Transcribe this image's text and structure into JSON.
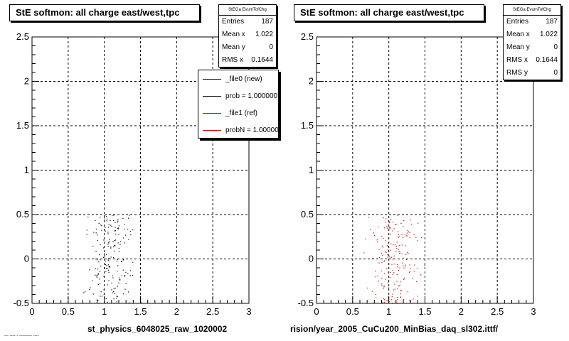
{
  "panels": [
    {
      "title": "StE softmon: all charge east/west,tpc",
      "stats": {
        "name": "StEGa EvumTofChg",
        "rows": [
          {
            "label": "Entries",
            "value": "187"
          },
          {
            "label": "Mean x",
            "value": "1.022"
          },
          {
            "label": "Mean y",
            "value": "0"
          },
          {
            "label": "RMS x",
            "value": "0.1644"
          }
        ]
      },
      "legend": [
        {
          "label": "_file0 (new)",
          "color": "#000000"
        },
        {
          "label": "prob = 1.000000",
          "color": "#000000"
        },
        {
          "label": "_file1 (ref)",
          "color": "#cc0000"
        },
        {
          "label": "probN = 1.000000",
          "color": "#cc0000"
        }
      ],
      "xlabel": "st_physics_6048025_raw_1020002"
    },
    {
      "title": "StE softmon: all charge east/west,tpc",
      "stats": {
        "name": "StEGa EvumTofChg",
        "rows": [
          {
            "label": "Entries",
            "value": "187"
          },
          {
            "label": "Mean x",
            "value": "1.022"
          },
          {
            "label": "Mean y",
            "value": "0"
          },
          {
            "label": "RMS x",
            "value": "0.1644"
          },
          {
            "label": "RMS y",
            "value": "0"
          }
        ]
      },
      "xlabel": "rision/year_2005_CuCu200_MinBias_daq_sl302.ittf/"
    }
  ],
  "footer": "--- ---- - --------- ----",
  "chart_data": [
    {
      "type": "scatter",
      "title": "StE softmon: all charge east/west,tpc",
      "xlabel": "st_physics_6048025_raw_1020002",
      "xlim": [
        0,
        3
      ],
      "ylim": [
        -0.5,
        2.5
      ],
      "xticks": [
        "0",
        "0.5",
        "1",
        "1.5",
        "2",
        "2.5",
        "3"
      ],
      "yticks": [
        "-0.5",
        "0",
        "0.5",
        "1",
        "1.5",
        "2",
        "2.5"
      ],
      "grid": true,
      "legend_position": "top-right",
      "series": [
        {
          "name": "_file0 (new)",
          "color": "#000000",
          "entries": 187,
          "x_range": [
            0.6,
            1.55
          ],
          "y_range": [
            -0.5,
            0.5
          ]
        }
      ]
    },
    {
      "type": "scatter",
      "title": "StE softmon: all charge east/west,tpc",
      "xlabel": "rision/year_2005_CuCu200_MinBias_daq_sl302.ittf/",
      "xlim": [
        0,
        3
      ],
      "ylim": [
        -0.5,
        2.5
      ],
      "xticks": [
        "0",
        "0.5",
        "1",
        "1.5",
        "2",
        "2.5",
        "3"
      ],
      "yticks": [
        "-0.5",
        "0",
        "0.5",
        "1",
        "1.5",
        "2",
        "2.5"
      ],
      "grid": true,
      "series": [
        {
          "name": "_file1 (ref)",
          "color": "#cc0000",
          "entries": 187,
          "x_range": [
            0.6,
            1.55
          ],
          "y_range": [
            -0.5,
            0.5
          ]
        }
      ]
    }
  ]
}
